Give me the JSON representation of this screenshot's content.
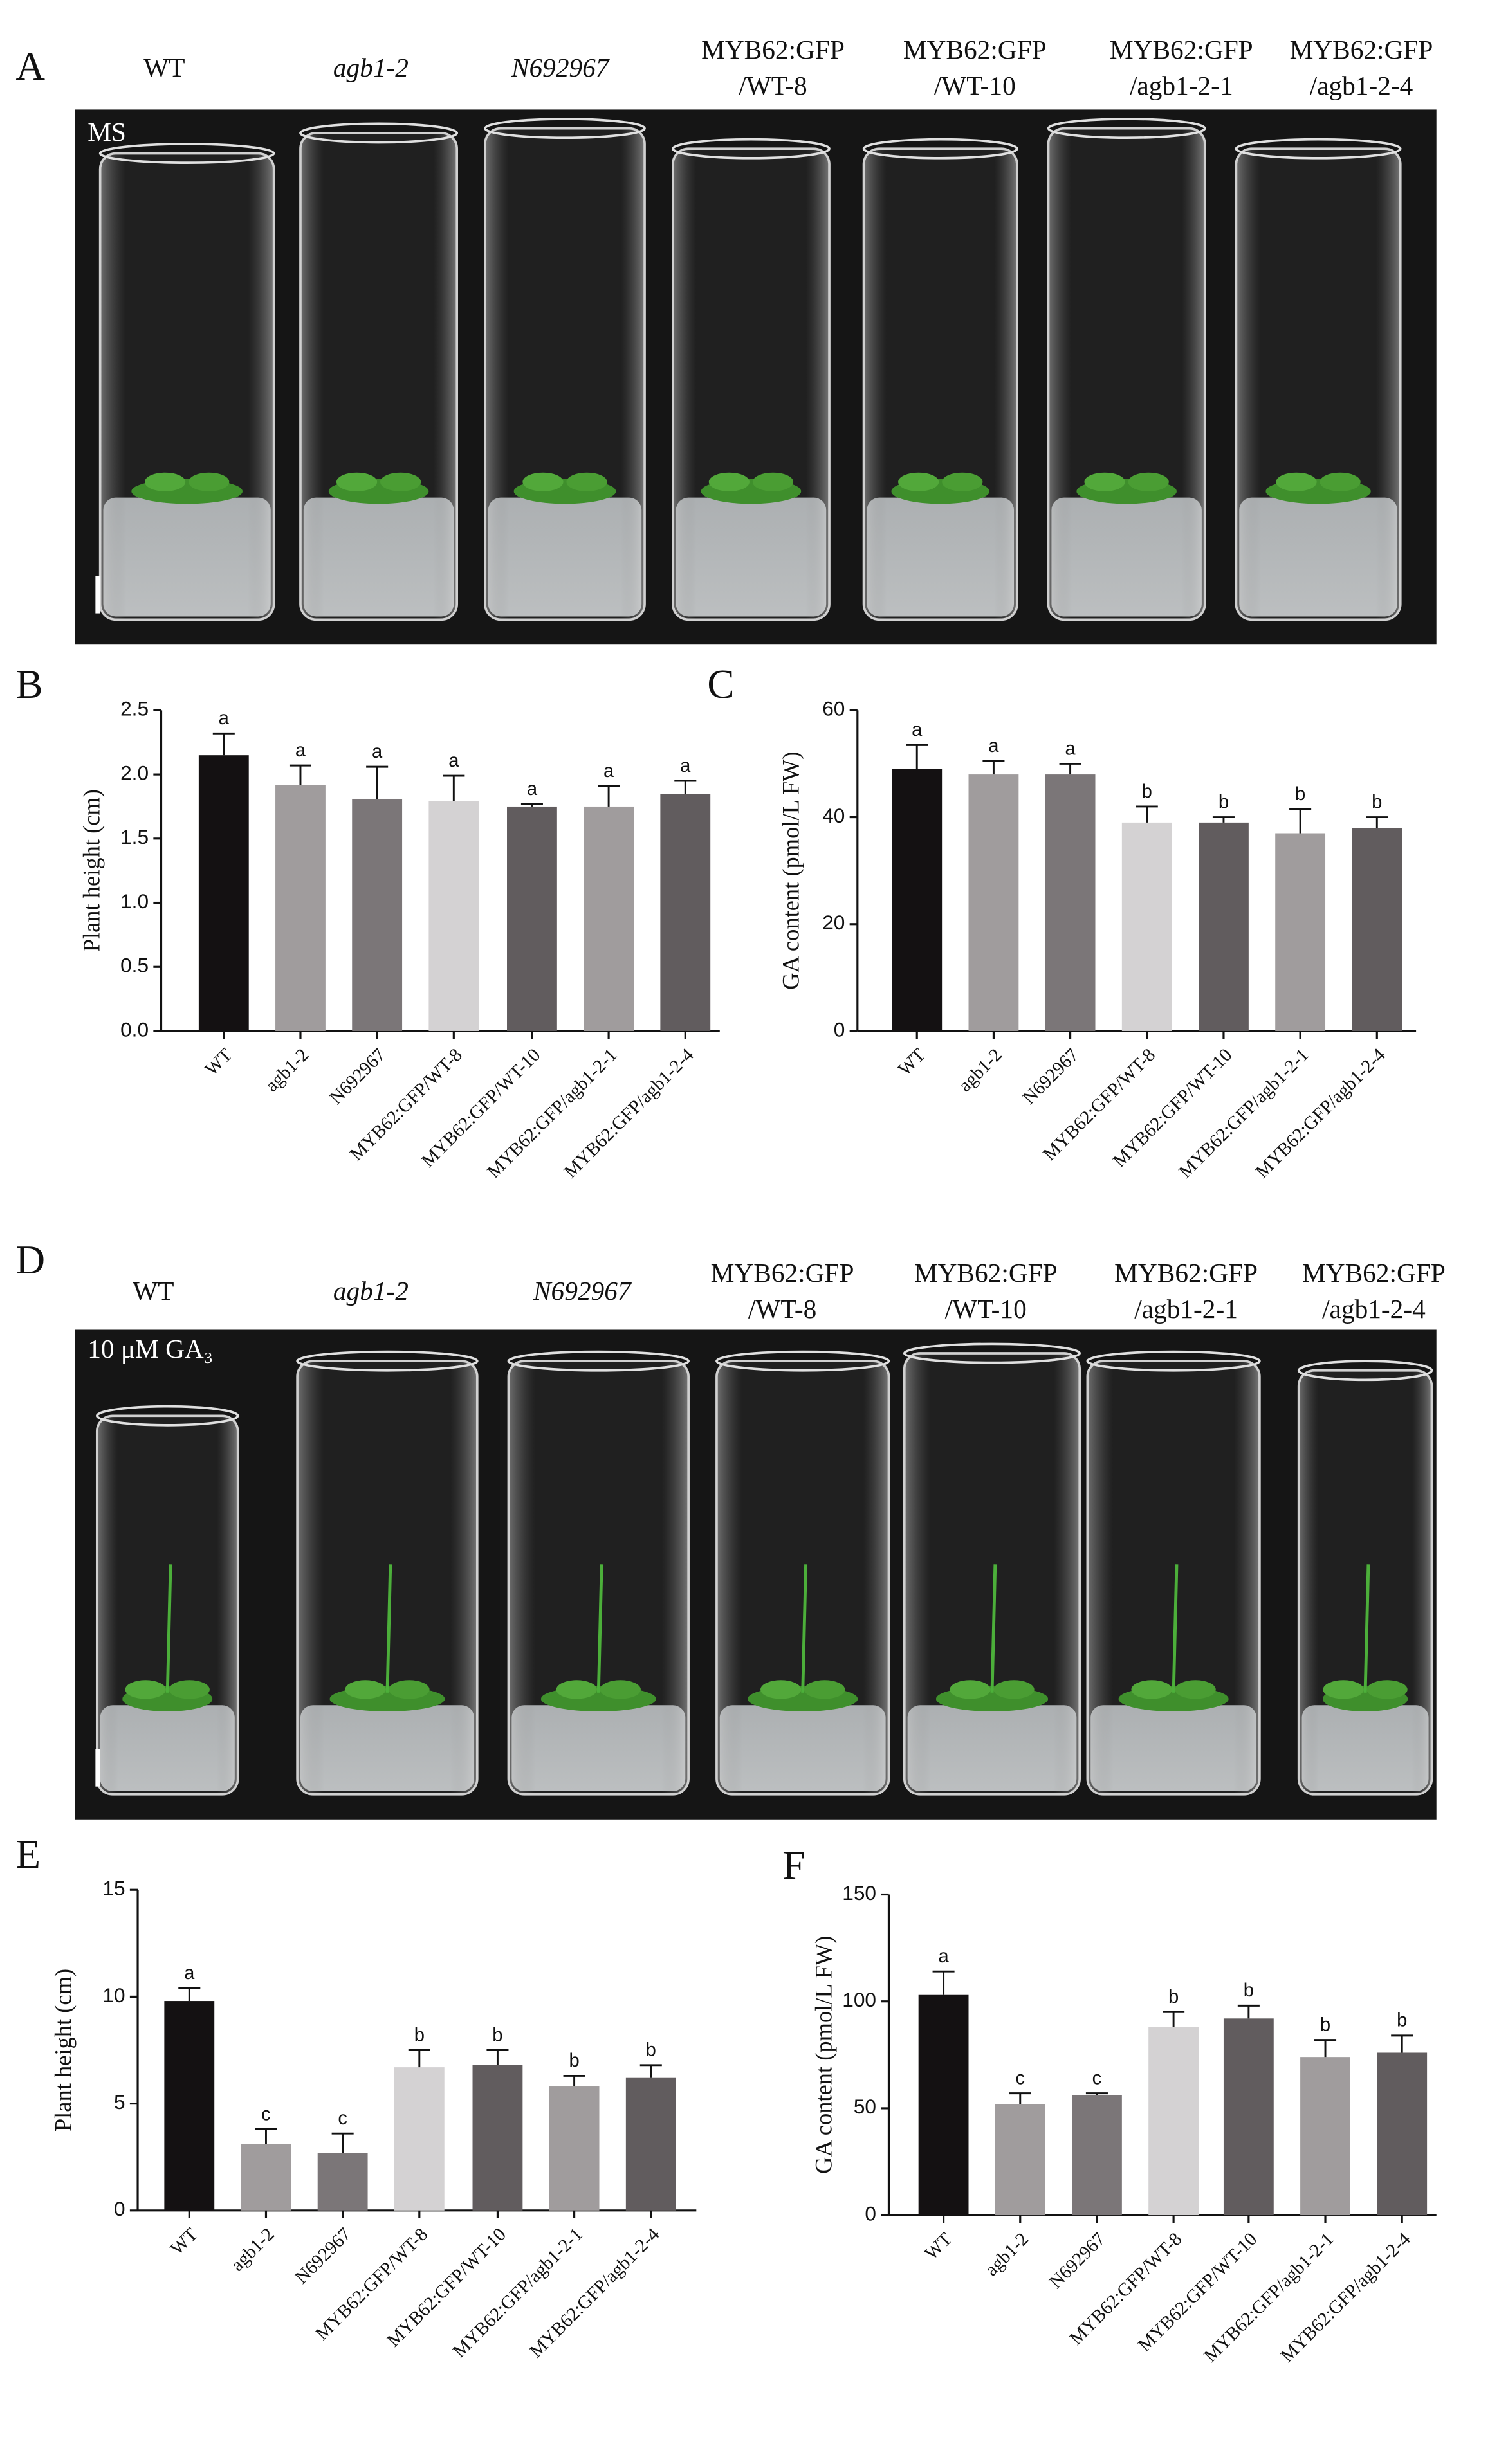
{
  "photos": [
    {
      "panel": "A",
      "condition": "MS",
      "labels": [
        [
          "WT"
        ],
        [
          "agb1-2"
        ],
        [
          "N692967"
        ],
        [
          "MYB62:GFP",
          "/WT-8"
        ],
        [
          "MYB62:GFP",
          "/WT-10"
        ],
        [
          "MYB62:GFP",
          "/agb1-2-1"
        ],
        [
          "MYB62:GFP",
          "/agb1-2-4"
        ]
      ]
    },
    {
      "panel": "D",
      "condition": "10 μM GA₃",
      "labels": [
        [
          "WT"
        ],
        [
          "agb1-2"
        ],
        [
          "N692967"
        ],
        [
          "MYB62:GFP",
          "/WT-8"
        ],
        [
          "MYB62:GFP",
          "/WT-10"
        ],
        [
          "MYB62:GFP",
          "/agb1-2-1"
        ],
        [
          "MYB62:GFP",
          "/agb1-2-4"
        ]
      ]
    }
  ],
  "chart_data": [
    {
      "type": "bar",
      "panel": "B",
      "y_label": "Plant height (cm)",
      "categories": [
        "WT",
        "agb1-2",
        "N692967",
        "MYB62:GFP/WT-8",
        "MYB62:GFP/WT-10",
        "MYB62:GFP/agb1-2-1",
        "MYB62:GFP/agb1-2-4"
      ],
      "values": [
        2.15,
        1.92,
        1.81,
        1.79,
        1.75,
        1.75,
        1.85
      ],
      "errors": [
        0.17,
        0.15,
        0.25,
        0.2,
        0.02,
        0.16,
        0.1
      ],
      "letters": [
        "a",
        "a",
        "a",
        "a",
        "a",
        "a",
        "a"
      ],
      "colors": [
        "#141112",
        "#a09c9d",
        "#7b7678",
        "#d4d2d3",
        "#615c5e",
        "#a09c9d",
        "#615c5e"
      ],
      "ylim": [
        0,
        2.5
      ],
      "yticks": [
        {
          "value": 0,
          "label": "0.0"
        },
        0.5,
        {
          "value": 1,
          "label": "1.0"
        },
        1.5,
        {
          "value": 2,
          "label": "2.0"
        },
        2.5
      ]
    },
    {
      "type": "bar",
      "panel": "C",
      "y_label": "GA content (pmol/L FW)",
      "categories": [
        "WT",
        "agb1-2",
        "N692967",
        "MYB62:GFP/WT-8",
        "MYB62:GFP/WT-10",
        "MYB62:GFP/agb1-2-1",
        "MYB62:GFP/agb1-2-4"
      ],
      "values": [
        49,
        48,
        48,
        39,
        39,
        37,
        38
      ],
      "errors": [
        4.5,
        2.5,
        2,
        3,
        1,
        4.5,
        2
      ],
      "letters": [
        "a",
        "a",
        "a",
        "b",
        "b",
        "b",
        "b"
      ],
      "colors": [
        "#141112",
        "#a09c9d",
        "#7b7678",
        "#d4d2d3",
        "#615c5e",
        "#a09c9d",
        "#615c5e"
      ],
      "ylim": [
        0,
        60
      ],
      "yticks": [
        0,
        20,
        40,
        60
      ]
    },
    {
      "type": "bar",
      "panel": "E",
      "y_label": "Plant height (cm)",
      "categories": [
        "WT",
        "agb1-2",
        "N692967",
        "MYB62:GFP/WT-8",
        "MYB62:GFP/WT-10",
        "MYB62:GFP/agb1-2-1",
        "MYB62:GFP/agb1-2-4"
      ],
      "values": [
        9.8,
        3.1,
        2.7,
        6.7,
        6.8,
        5.8,
        6.2
      ],
      "errors": [
        0.6,
        0.7,
        0.9,
        0.8,
        0.7,
        0.5,
        0.6
      ],
      "letters": [
        "a",
        "c",
        "c",
        "b",
        "b",
        "b",
        "b"
      ],
      "colors": [
        "#141112",
        "#a09c9d",
        "#7b7678",
        "#d4d2d3",
        "#615c5e",
        "#a09c9d",
        "#615c5e"
      ],
      "ylim": [
        0,
        15
      ],
      "yticks": [
        0,
        5,
        10,
        15
      ]
    },
    {
      "type": "bar",
      "panel": "F",
      "y_label": "GA content (pmol/L FW)",
      "categories": [
        "WT",
        "agb1-2",
        "N692967",
        "MYB62:GFP/WT-8",
        "MYB62:GFP/WT-10",
        "MYB62:GFP/agb1-2-1",
        "MYB62:GFP/agb1-2-4"
      ],
      "values": [
        103,
        52,
        56,
        88,
        92,
        74,
        76
      ],
      "errors": [
        11,
        5,
        1,
        7,
        6,
        8,
        8
      ],
      "letters": [
        "a",
        "c",
        "c",
        "b",
        "b",
        "b",
        "b"
      ],
      "colors": [
        "#141112",
        "#a09c9d",
        "#7b7678",
        "#d4d2d3",
        "#615c5e",
        "#a09c9d",
        "#615c5e"
      ],
      "ylim": [
        0,
        150
      ],
      "yticks": [
        0,
        50,
        100,
        150
      ]
    }
  ]
}
